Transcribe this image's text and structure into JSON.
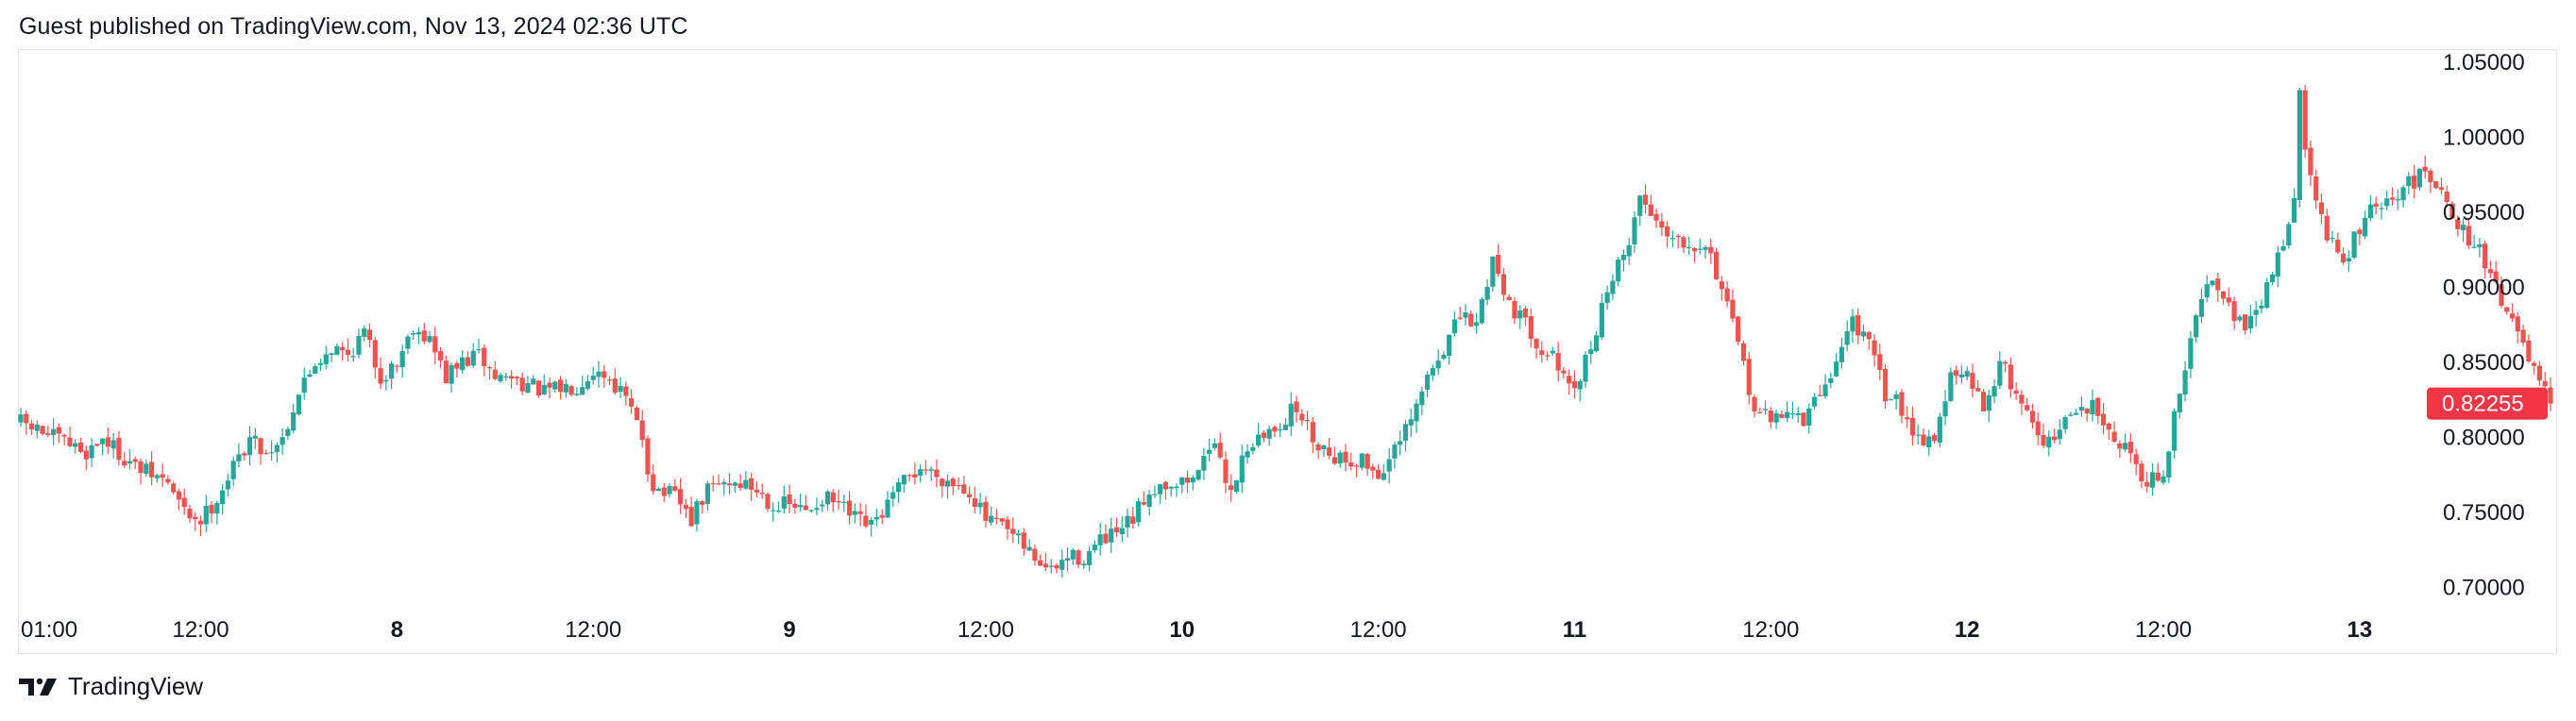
{
  "header": {
    "publish_text": "Guest published on TradingView.com, Nov 13, 2024 02:36 UTC"
  },
  "footer": {
    "brand": "TradingView",
    "logo_icon": "tradingview-logo-icon"
  },
  "colors": {
    "up": "#26a69a",
    "down": "#ef5350",
    "price_label_bg": "#f23645",
    "grid_border": "#e0e3eb",
    "text": "#131722"
  },
  "chart_data": {
    "type": "candlestick",
    "title": "",
    "y_axis": {
      "position": "right",
      "ylim": [
        0.68,
        1.055
      ],
      "ticks": [
        "1.05000",
        "1.00000",
        "0.95000",
        "0.90000",
        "0.85000",
        "0.80000",
        "0.75000",
        "0.70000"
      ],
      "tick_values": [
        1.05,
        1.0,
        0.95,
        0.9,
        0.85,
        0.8,
        0.75,
        0.7
      ]
    },
    "x_axis": {
      "range_hours": [
        0,
        147
      ],
      "ticks": [
        {
          "label": "01:00",
          "hour": 0.2,
          "bold": false
        },
        {
          "label": "12:00",
          "hour": 11,
          "bold": false
        },
        {
          "label": "8",
          "hour": 23,
          "bold": true
        },
        {
          "label": "12:00",
          "hour": 35,
          "bold": false
        },
        {
          "label": "9",
          "hour": 47,
          "bold": true
        },
        {
          "label": "12:00",
          "hour": 59,
          "bold": false
        },
        {
          "label": "10",
          "hour": 71,
          "bold": true
        },
        {
          "label": "12:00",
          "hour": 83,
          "bold": false
        },
        {
          "label": "11",
          "hour": 95,
          "bold": true
        },
        {
          "label": "12:00",
          "hour": 107,
          "bold": false
        },
        {
          "label": "12",
          "hour": 119,
          "bold": true
        },
        {
          "label": "12:00",
          "hour": 131,
          "bold": false
        },
        {
          "label": "13",
          "hour": 143,
          "bold": true
        }
      ]
    },
    "last_price": {
      "label": "0.82255",
      "value": 0.82255
    },
    "candle_interval_minutes": 20,
    "close_path": [
      [
        0,
        0.81
      ],
      [
        2,
        0.8
      ],
      [
        4,
        0.79
      ],
      [
        5,
        0.8
      ],
      [
        7,
        0.78
      ],
      [
        8,
        0.775
      ],
      [
        9,
        0.77
      ],
      [
        10,
        0.75
      ],
      [
        11,
        0.745
      ],
      [
        12,
        0.76
      ],
      [
        13,
        0.78
      ],
      [
        14,
        0.8
      ],
      [
        15,
        0.79
      ],
      [
        16,
        0.8
      ],
      [
        17,
        0.83
      ],
      [
        18,
        0.85
      ],
      [
        19,
        0.86
      ],
      [
        20,
        0.855
      ],
      [
        21,
        0.87
      ],
      [
        22,
        0.84
      ],
      [
        23,
        0.85
      ],
      [
        24,
        0.875
      ],
      [
        25,
        0.865
      ],
      [
        26,
        0.84
      ],
      [
        27,
        0.85
      ],
      [
        28,
        0.855
      ],
      [
        29,
        0.84
      ],
      [
        30,
        0.84
      ],
      [
        31,
        0.835
      ],
      [
        32,
        0.83
      ],
      [
        34,
        0.835
      ],
      [
        35,
        0.845
      ],
      [
        36,
        0.84
      ],
      [
        37,
        0.825
      ],
      [
        38,
        0.8
      ],
      [
        38.5,
        0.77
      ],
      [
        39,
        0.765
      ],
      [
        40,
        0.76
      ],
      [
        41,
        0.745
      ],
      [
        42,
        0.765
      ],
      [
        43,
        0.77
      ],
      [
        44,
        0.77
      ],
      [
        45,
        0.765
      ],
      [
        46,
        0.755
      ],
      [
        47,
        0.755
      ],
      [
        48,
        0.75
      ],
      [
        49,
        0.76
      ],
      [
        50,
        0.755
      ],
      [
        51,
        0.745
      ],
      [
        52,
        0.74
      ],
      [
        53,
        0.755
      ],
      [
        54,
        0.77
      ],
      [
        55,
        0.78
      ],
      [
        56,
        0.775
      ],
      [
        57,
        0.77
      ],
      [
        58,
        0.765
      ],
      [
        59,
        0.745
      ],
      [
        60,
        0.74
      ],
      [
        61,
        0.73
      ],
      [
        62,
        0.72
      ],
      [
        63,
        0.71
      ],
      [
        64,
        0.72
      ],
      [
        65,
        0.72
      ],
      [
        66,
        0.73
      ],
      [
        67,
        0.735
      ],
      [
        68,
        0.745
      ],
      [
        69,
        0.765
      ],
      [
        70,
        0.77
      ],
      [
        71,
        0.77
      ],
      [
        72,
        0.775
      ],
      [
        72.5,
        0.8
      ],
      [
        73,
        0.79
      ],
      [
        74,
        0.765
      ],
      [
        75,
        0.795
      ],
      [
        76,
        0.8
      ],
      [
        77,
        0.81
      ],
      [
        78,
        0.82
      ],
      [
        79,
        0.8
      ],
      [
        80,
        0.79
      ],
      [
        81,
        0.785
      ],
      [
        82,
        0.785
      ],
      [
        83,
        0.775
      ],
      [
        84,
        0.79
      ],
      [
        85,
        0.81
      ],
      [
        86,
        0.84
      ],
      [
        87,
        0.86
      ],
      [
        88,
        0.88
      ],
      [
        89,
        0.875
      ],
      [
        90,
        0.92
      ],
      [
        91,
        0.89
      ],
      [
        92,
        0.875
      ],
      [
        93,
        0.86
      ],
      [
        94,
        0.85
      ],
      [
        94.5,
        0.83
      ],
      [
        95,
        0.83
      ],
      [
        96,
        0.86
      ],
      [
        97,
        0.9
      ],
      [
        98,
        0.92
      ],
      [
        99,
        0.96
      ],
      [
        100,
        0.945
      ],
      [
        101,
        0.935
      ],
      [
        102,
        0.93
      ],
      [
        103,
        0.93
      ],
      [
        104,
        0.9
      ],
      [
        105,
        0.86
      ],
      [
        106,
        0.82
      ],
      [
        107,
        0.81
      ],
      [
        108,
        0.82
      ],
      [
        109,
        0.81
      ],
      [
        110,
        0.83
      ],
      [
        111,
        0.85
      ],
      [
        112,
        0.88
      ],
      [
        113,
        0.86
      ],
      [
        114,
        0.83
      ],
      [
        115,
        0.82
      ],
      [
        116,
        0.8
      ],
      [
        117,
        0.8
      ],
      [
        118,
        0.84
      ],
      [
        119,
        0.84
      ],
      [
        120,
        0.82
      ],
      [
        121,
        0.85
      ],
      [
        122,
        0.83
      ],
      [
        123,
        0.81
      ],
      [
        124,
        0.795
      ],
      [
        125,
        0.81
      ],
      [
        126,
        0.82
      ],
      [
        127,
        0.82
      ],
      [
        128,
        0.8
      ],
      [
        129,
        0.79
      ],
      [
        130,
        0.77
      ],
      [
        131,
        0.775
      ],
      [
        132,
        0.83
      ],
      [
        133,
        0.88
      ],
      [
        134,
        0.91
      ],
      [
        135,
        0.89
      ],
      [
        136,
        0.87
      ],
      [
        137,
        0.89
      ],
      [
        138,
        0.92
      ],
      [
        139,
        0.96
      ],
      [
        139.3,
        1.03
      ],
      [
        139.8,
        0.98
      ],
      [
        141,
        0.935
      ],
      [
        142,
        0.915
      ],
      [
        143,
        0.94
      ],
      [
        144,
        0.955
      ],
      [
        145,
        0.955
      ],
      [
        146,
        0.97
      ],
      [
        147,
        0.975
      ],
      [
        148,
        0.97
      ],
      [
        149,
        0.94
      ],
      [
        150,
        0.93
      ],
      [
        151,
        0.91
      ],
      [
        152,
        0.885
      ],
      [
        153,
        0.86
      ],
      [
        154,
        0.835
      ],
      [
        154.67,
        0.82255
      ]
    ],
    "grid": false,
    "legend": "none"
  }
}
